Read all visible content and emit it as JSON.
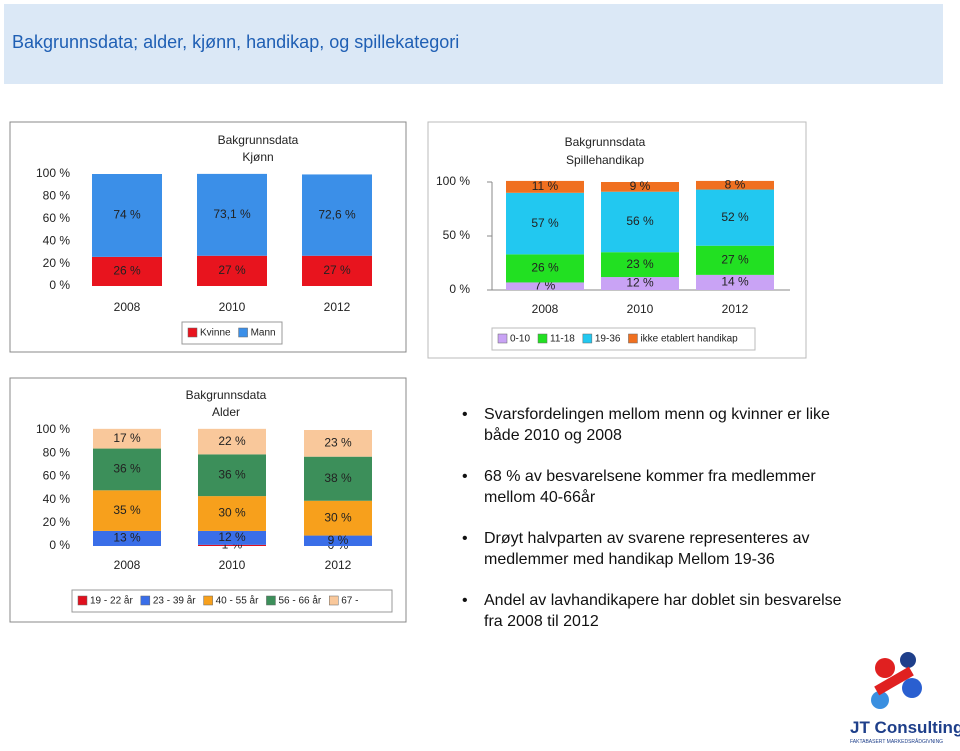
{
  "title": "Bakgrunnsdata; alder, kjønn, handikap, og spillekategori",
  "chart_data": [
    {
      "type": "bar",
      "stacked": true,
      "title": "Bakgrunnsdata",
      "subtitle": "Kjønn",
      "categories": [
        "2008",
        "2010",
        "2012"
      ],
      "series": [
        {
          "name": "Kvinne",
          "color": "#e8141e",
          "values": [
            26,
            27,
            27
          ],
          "value_labels": [
            "26 %",
            "27 %",
            "27 %"
          ]
        },
        {
          "name": "Mann",
          "color": "#3b8fe8",
          "values": [
            74,
            73.1,
            72.6
          ],
          "value_labels": [
            "74 %",
            "73,1 %",
            "72,6 %"
          ]
        }
      ],
      "ylim": [
        0,
        100
      ],
      "yticks": [
        {
          "value": 0,
          "label": "0 %"
        },
        {
          "value": 20,
          "label": "20 %"
        },
        {
          "value": 40,
          "label": "40 %"
        },
        {
          "value": 60,
          "label": "60 %"
        },
        {
          "value": 80,
          "label": "80 %"
        },
        {
          "value": 100,
          "label": "100 %"
        }
      ],
      "legend": "bottom"
    },
    {
      "type": "bar",
      "stacked": true,
      "title": "Bakgrunnsdata",
      "subtitle": "Spillehandikap",
      "categories": [
        "2008",
        "2010",
        "2012"
      ],
      "series": [
        {
          "name": "0-10",
          "color": "#c9a3f5",
          "values": [
            7,
            12,
            14
          ],
          "value_labels": [
            "7 %",
            "12 %",
            "14 %"
          ]
        },
        {
          "name": "11-18",
          "color": "#22e022",
          "values": [
            26,
            23,
            27
          ],
          "value_labels": [
            "26 %",
            "23 %",
            "27 %"
          ]
        },
        {
          "name": "19-36",
          "color": "#22c8f0",
          "values": [
            57,
            56,
            52
          ],
          "value_labels": [
            "57 %",
            "56 %",
            "52 %"
          ]
        },
        {
          "name": "ikke etablert handikap",
          "color": "#f07020",
          "values": [
            11,
            9,
            8
          ],
          "value_labels": [
            "11 %",
            "9 %",
            "8 %"
          ]
        }
      ],
      "ylim": [
        0,
        100
      ],
      "yticks": [
        {
          "value": 0,
          "label": "0 %"
        },
        {
          "value": 50,
          "label": "50 %"
        },
        {
          "value": 100,
          "label": "100 %"
        }
      ],
      "legend": "bottom"
    },
    {
      "type": "bar",
      "stacked": true,
      "title": "Bakgrunnsdata",
      "subtitle": "Alder",
      "categories": [
        "2008",
        "2010",
        "2012"
      ],
      "series": [
        {
          "name": "19 - 22 år",
          "color": "#e0101e",
          "values": [
            null,
            1,
            0
          ],
          "value_labels": [
            null,
            "1 %",
            "0 %"
          ]
        },
        {
          "name": "23 - 39 år",
          "color": "#3a6ee8",
          "values": [
            13,
            12,
            9
          ],
          "value_labels": [
            "13 %",
            "12 %",
            "9 %"
          ]
        },
        {
          "name": "40 - 55 år",
          "color": "#f7a01c",
          "values": [
            35,
            30,
            30
          ],
          "value_labels": [
            "35 %",
            "30 %",
            "30 %"
          ]
        },
        {
          "name": "56 - 66 år",
          "color": "#3c8f5a",
          "values": [
            36,
            36,
            38
          ],
          "value_labels": [
            "36 %",
            "36 %",
            "38 %"
          ]
        },
        {
          "name": "67 -",
          "color": "#f9c89b",
          "values": [
            17,
            22,
            23
          ],
          "value_labels": [
            "17 %",
            "22 %",
            "23 %"
          ]
        }
      ],
      "ylim": [
        0,
        100
      ],
      "yticks": [
        {
          "value": 0,
          "label": "0 %"
        },
        {
          "value": 20,
          "label": "20 %"
        },
        {
          "value": 40,
          "label": "40 %"
        },
        {
          "value": 60,
          "label": "60 %"
        },
        {
          "value": 80,
          "label": "80 %"
        },
        {
          "value": 100,
          "label": "100 %"
        }
      ],
      "legend": "bottom"
    }
  ],
  "bullets": [
    "Svarsfordelingen mellom menn og kvinner er like både 2010 og 2008",
    "68 % av besvarelsene kommer fra medlemmer mellom 40-66år",
    "Drøyt halvparten av svarene representeres av medlemmer med handikap Mellom 19-36",
    "Andel av lavhandikapere har doblet sin besvarelse fra  2008 til 2012"
  ],
  "logo": {
    "name": "JT Consulting",
    "tagline": "FAKTABASERT MARKEDSRÅDGIVNING"
  }
}
